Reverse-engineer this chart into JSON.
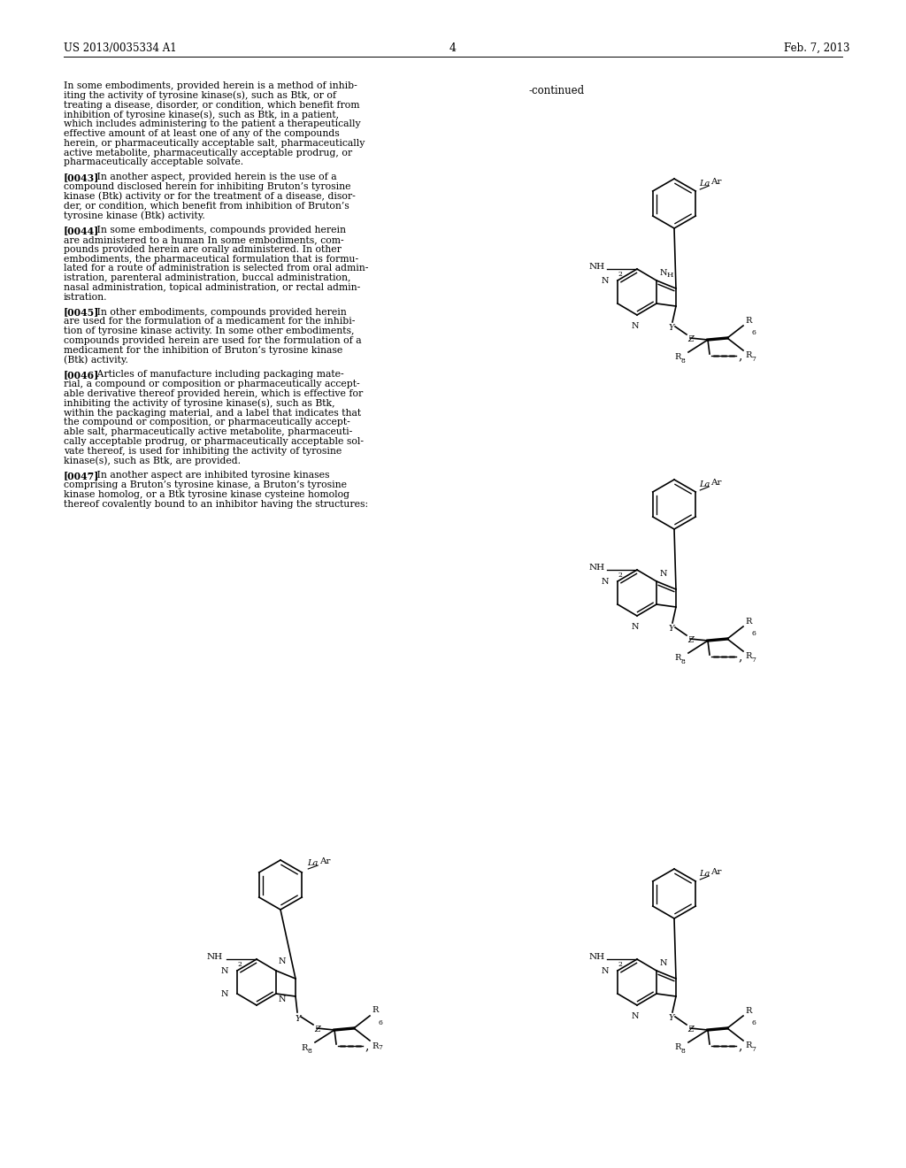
{
  "page_number": "4",
  "patent_number": "US 2013/0035334 A1",
  "patent_date": "Feb. 7, 2013",
  "continued_label": "-continued",
  "background_color": "#ffffff",
  "text_color": "#000000",
  "left_paragraphs": [
    {
      "tag": "",
      "lines": [
        "In some embodiments, provided herein is a method of inhib-",
        "iting the activity of tyrosine kinase(s), such as Btk, or of",
        "treating a disease, disorder, or condition, which benefit from",
        "inhibition of tyrosine kinase(s), such as Btk, in a patient,",
        "which includes administering to the patient a therapeutically",
        "effective amount of at least one of any of the compounds",
        "herein, or pharmaceutically acceptable salt, pharmaceutically",
        "active metabolite, pharmaceutically acceptable prodrug, or",
        "pharmaceutically acceptable solvate."
      ]
    },
    {
      "tag": "[0043]",
      "lines": [
        "   In another aspect, provided herein is the use of a",
        "compound disclosed herein for inhibiting Bruton’s tyrosine",
        "kinase (Btk) activity or for the treatment of a disease, disor-",
        "der, or condition, which benefit from inhibition of Bruton’s",
        "tyrosine kinase (Btk) activity."
      ]
    },
    {
      "tag": "[0044]",
      "lines": [
        "   In some embodiments, compounds provided herein",
        "are administered to a human In some embodiments, com-",
        "pounds provided herein are orally administered. In other",
        "embodiments, the pharmaceutical formulation that is formu-",
        "lated for a route of administration is selected from oral admin-",
        "istration, parenteral administration, buccal administration,",
        "nasal administration, topical administration, or rectal admin-",
        "istration."
      ]
    },
    {
      "tag": "[0045]",
      "lines": [
        "   In other embodiments, compounds provided herein",
        "are used for the formulation of a medicament for the inhibi-",
        "tion of tyrosine kinase activity. In some other embodiments,",
        "compounds provided herein are used for the formulation of a",
        "medicament for the inhibition of Bruton’s tyrosine kinase",
        "(Btk) activity."
      ]
    },
    {
      "tag": "[0046]",
      "lines": [
        "   Articles of manufacture including packaging mate-",
        "rial, a compound or composition or pharmaceutically accept-",
        "able derivative thereof provided herein, which is effective for",
        "inhibiting the activity of tyrosine kinase(s), such as Btk,",
        "within the packaging material, and a label that indicates that",
        "the compound or composition, or pharmaceutically accept-",
        "able salt, pharmaceutically active metabolite, pharmaceuti-",
        "cally acceptable prodrug, or pharmaceutically acceptable sol-",
        "vate thereof, is used for inhibiting the activity of tyrosine",
        "kinase(s), such as Btk, are provided."
      ]
    },
    {
      "tag": "[0047]",
      "lines": [
        "   In another aspect are inhibited tyrosine kinases",
        "comprising a Bruton’s tyrosine kinase, a Bruton’s tyrosine",
        "kinase homolog, or a Btk tyrosine kinase cysteine homolog",
        "thereof covalently bound to an inhibitor having the structures:"
      ]
    }
  ]
}
